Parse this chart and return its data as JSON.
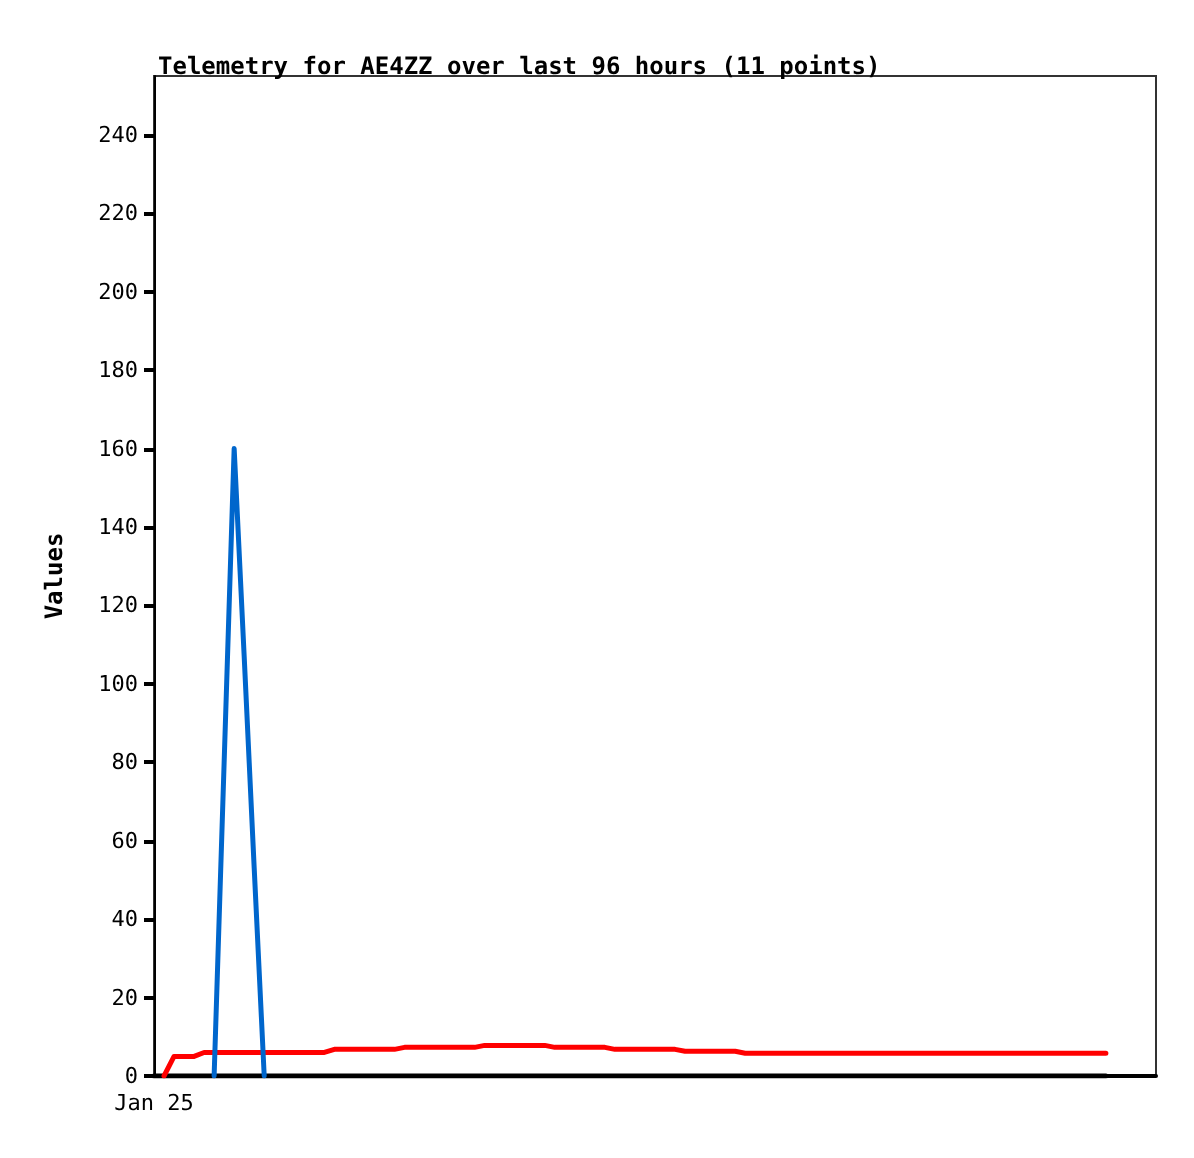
{
  "chart_data": {
    "type": "line",
    "title": "Telemetry for AE4ZZ over last 96 hours (11 points)",
    "ylabel": "Values",
    "categories": [
      "Jan 25",
      null,
      null,
      null,
      null,
      null,
      null,
      null,
      null,
      null,
      null,
      null,
      null,
      null,
      null,
      null,
      null,
      null,
      null,
      null,
      null,
      null,
      null,
      null,
      null,
      null,
      null,
      null,
      null,
      null,
      null,
      null,
      null,
      null,
      null,
      null,
      null,
      null,
      null,
      null,
      null,
      null,
      null,
      null,
      null,
      null,
      null,
      null,
      null,
      null,
      null,
      null,
      null,
      null,
      null,
      null,
      null,
      null,
      null,
      null,
      null,
      null,
      null,
      null,
      null,
      null,
      null,
      null,
      null,
      null,
      null,
      null,
      null,
      null,
      null,
      null,
      null,
      null,
      null,
      null,
      null,
      null,
      null,
      null,
      null,
      null,
      null,
      null,
      null,
      null,
      null,
      null,
      null,
      null,
      null,
      null,
      null,
      null,
      null,
      null,
      null
    ],
    "series": [
      {
        "color": "#000000",
        "values": [
          0,
          0,
          0,
          0,
          0,
          0,
          0,
          0,
          0,
          0,
          0,
          0,
          0,
          0,
          0,
          0,
          0,
          0,
          0,
          0,
          0,
          0,
          0,
          0,
          0,
          0,
          0,
          0,
          0,
          0,
          0,
          0,
          0,
          0,
          0,
          0,
          0,
          0,
          0,
          0,
          0,
          0,
          0,
          0,
          0,
          0,
          0,
          0,
          0,
          0,
          0,
          0,
          0,
          0,
          0,
          0,
          0,
          0,
          0,
          0,
          0,
          0,
          0,
          0,
          0,
          0,
          0,
          0,
          0,
          0,
          0,
          0,
          0,
          0,
          0,
          0,
          0,
          0,
          0,
          0,
          0,
          0,
          0,
          0,
          0,
          0,
          0,
          0,
          0,
          0,
          0,
          0,
          0,
          0,
          0,
          0,
          null,
          null,
          null,
          null,
          null
        ]
      },
      {
        "color": "#ff0000",
        "values": [
          null,
          0,
          5,
          5,
          5,
          6,
          6,
          6,
          6,
          6,
          6,
          6,
          6,
          6,
          6,
          6,
          6,
          6,
          6.8,
          6.8,
          6.8,
          6.8,
          6.8,
          6.8,
          6.8,
          7.3,
          7.3,
          7.3,
          7.3,
          7.3,
          7.3,
          7.3,
          7.3,
          7.8,
          7.8,
          7.8,
          7.8,
          7.8,
          7.8,
          7.8,
          7.3,
          7.3,
          7.3,
          7.3,
          7.3,
          7.3,
          6.8,
          6.8,
          6.8,
          6.8,
          6.8,
          6.8,
          6.8,
          6.3,
          6.3,
          6.3,
          6.3,
          6.3,
          6.3,
          5.8,
          5.8,
          5.8,
          5.8,
          5.8,
          5.8,
          5.8,
          5.8,
          5.8,
          5.8,
          5.8,
          5.8,
          5.8,
          5.8,
          5.8,
          5.8,
          5.8,
          5.8,
          5.8,
          5.8,
          5.8,
          5.8,
          5.8,
          5.8,
          5.8,
          5.8,
          5.8,
          5.8,
          5.8,
          5.8,
          5.8,
          5.8,
          5.8,
          5.8,
          5.8,
          5.8,
          5.8,
          null,
          null,
          null,
          null,
          null
        ]
      },
      {
        "color": "#0066cc",
        "values": [
          null,
          null,
          null,
          null,
          null,
          null,
          0,
          80,
          160,
          107,
          53,
          0,
          null,
          null,
          null,
          null,
          null,
          null,
          null,
          null,
          null,
          null,
          null,
          null,
          null,
          null,
          null,
          null,
          null,
          null,
          null,
          null,
          null,
          null,
          null,
          null,
          null,
          null,
          null,
          null,
          null,
          null,
          null,
          null,
          null,
          null,
          null,
          null,
          null,
          null,
          null,
          null,
          null,
          null,
          null,
          null,
          null,
          null,
          null,
          null,
          null,
          null,
          null,
          null,
          null,
          null,
          null,
          null,
          null,
          null,
          null,
          null,
          null,
          null,
          null,
          null,
          null,
          null,
          null,
          null,
          null,
          null,
          null,
          null,
          null,
          null,
          null,
          null,
          null,
          null,
          null,
          null,
          null,
          null,
          null,
          null,
          null,
          null,
          null,
          null,
          null
        ]
      }
    ],
    "ylim": [
      0,
      255
    ],
    "yticks": [
      0,
      20,
      40,
      60,
      80,
      100,
      120,
      140,
      160,
      180,
      200,
      220,
      240
    ],
    "grid": false,
    "marker": "none",
    "line_style": "solid"
  }
}
